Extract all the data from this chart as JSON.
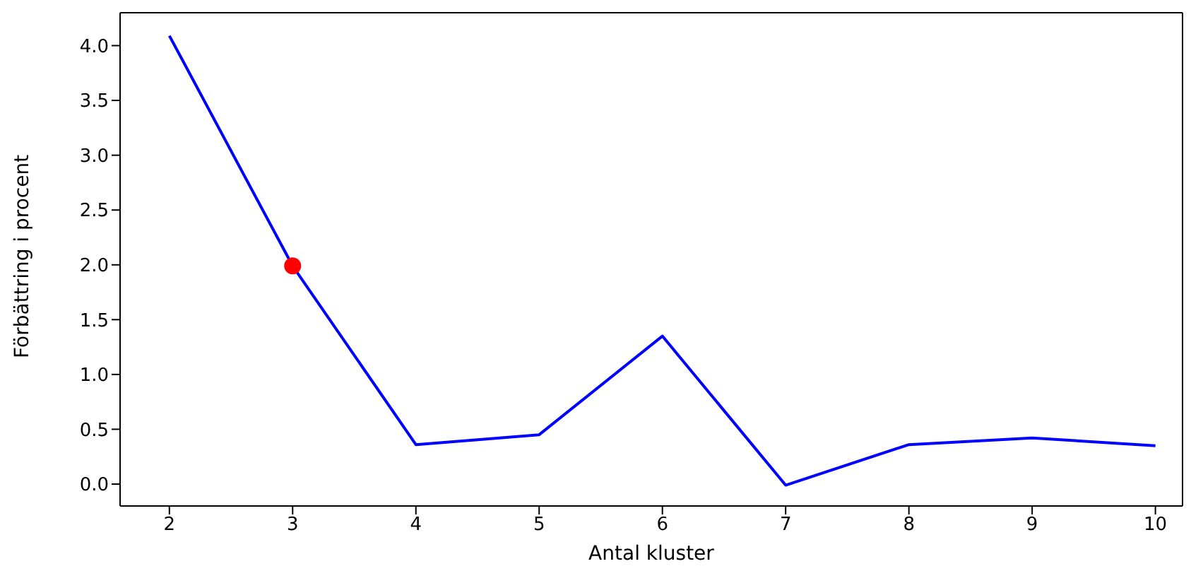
{
  "chart_data": {
    "type": "line",
    "xlabel": "Antal kluster",
    "ylabel": "Förbättring i procent",
    "xlim": [
      1.6,
      10.22
    ],
    "xticks": [
      2,
      3,
      4,
      5,
      6,
      7,
      8,
      9,
      10
    ],
    "ylim": [
      -0.2,
      4.3
    ],
    "yticks": [
      {
        "value": 0,
        "label": "0.0"
      },
      {
        "value": 0.5,
        "label": "0.5"
      },
      {
        "value": 1,
        "label": "1.0"
      },
      {
        "value": 1.5,
        "label": "1.5"
      },
      {
        "value": 2,
        "label": "2.0"
      },
      {
        "value": 2.5,
        "label": "2.5"
      },
      {
        "value": 3,
        "label": "3.0"
      },
      {
        "value": 3.5,
        "label": "3.5"
      },
      {
        "value": 4,
        "label": "4.0"
      }
    ],
    "legend": false,
    "series": [
      {
        "color": "#0000ff",
        "x": [
          2,
          3,
          4,
          5,
          6,
          7,
          8,
          9,
          10
        ],
        "values": [
          4.09,
          1.99,
          0.36,
          0.45,
          1.35,
          -0.01,
          0.36,
          0.42,
          0.35
        ]
      },
      {
        "type": "scatter",
        "color": "#ff0000",
        "x": [
          3
        ],
        "values": [
          1.99
        ]
      }
    ]
  }
}
